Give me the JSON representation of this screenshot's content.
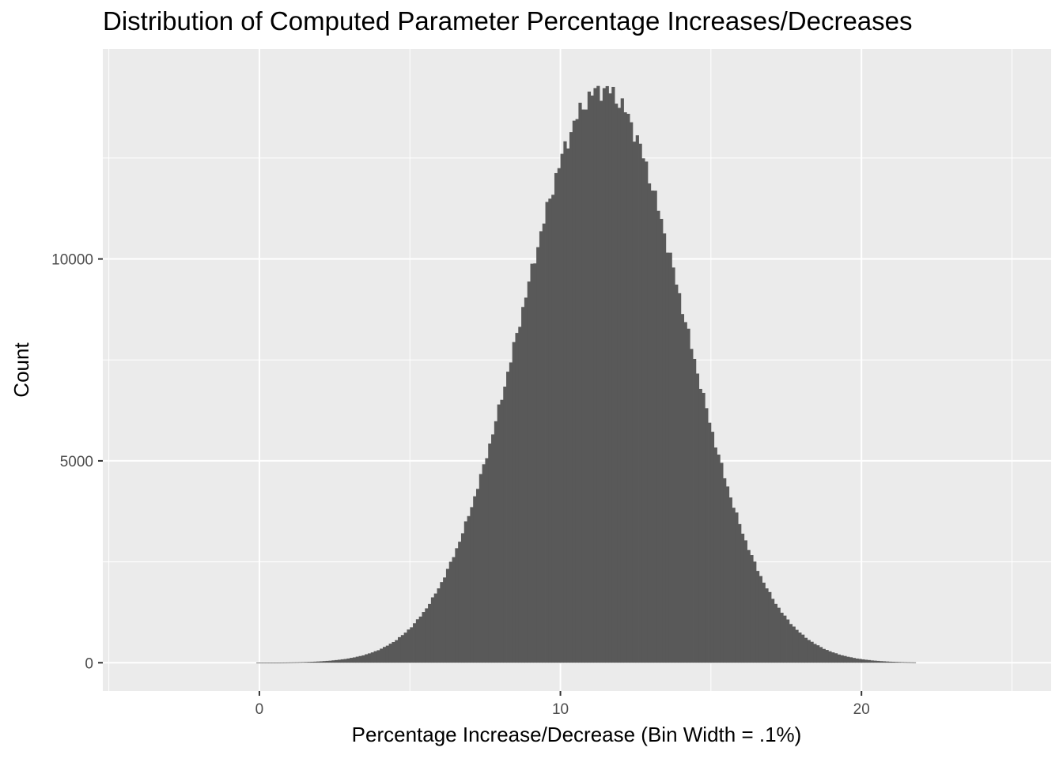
{
  "chart_data": {
    "type": "bar",
    "title": "Distribution of Computed Parameter Percentage Increases/Decreases",
    "xlabel": "Percentage Increase/Decrease (Bin Width = .1%)",
    "ylabel": "Count",
    "bin_width": 0.1,
    "xlim": [
      -5.2,
      26.3
    ],
    "ylim": [
      -700,
      15200
    ],
    "x_ticks": [
      0,
      10,
      20
    ],
    "x_tick_labels": [
      "0",
      "10",
      "20"
    ],
    "y_ticks": [
      0,
      5000,
      10000
    ],
    "y_tick_labels": [
      "0",
      "5000",
      "10000"
    ],
    "x_minor_grid": [
      -5,
      5,
      15,
      25
    ],
    "y_minor_grid": [
      2500,
      7500,
      12500
    ],
    "grid": true,
    "distribution": {
      "shape": "approximately normal",
      "center": 11.4,
      "sd": 2.7,
      "peak_count": 14200,
      "support": [
        -0.1,
        21.8
      ]
    },
    "colors": {
      "bars": "#595959",
      "panel": "#ebebeb",
      "grid": "#ffffff",
      "text": "#4d4d4d"
    }
  }
}
